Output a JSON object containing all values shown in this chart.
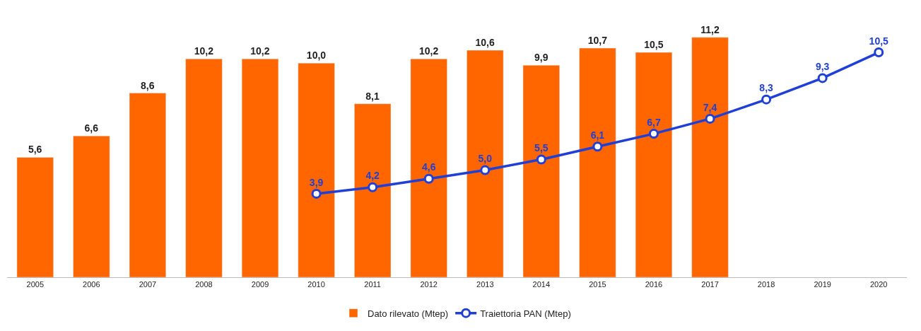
{
  "chart_data": {
    "type": "bar",
    "categories": [
      "2005",
      "2006",
      "2007",
      "2008",
      "2009",
      "2010",
      "2011",
      "2012",
      "2013",
      "2014",
      "2015",
      "2016",
      "2017",
      "2018",
      "2019",
      "2020"
    ],
    "series": [
      {
        "name": "Dato rilevato (Mtep)",
        "color": "#ff6600",
        "values": [
          5.6,
          6.6,
          8.6,
          10.2,
          10.2,
          10.0,
          8.1,
          10.2,
          10.6,
          9.9,
          10.7,
          10.5,
          11.2,
          null,
          null,
          null
        ],
        "value_labels": [
          "5,6",
          "6,6",
          "8,6",
          "10,2",
          "10,2",
          "10,0",
          "8,1",
          "10,2",
          "10,6",
          "9,9",
          "10,7",
          "10,5",
          "11,2",
          null,
          null,
          null
        ]
      },
      {
        "name": "Traiettoria PAN (Mtep)",
        "type": "line",
        "color": "#1f3fd6",
        "marker": "circle",
        "values": [
          null,
          null,
          null,
          null,
          null,
          3.9,
          4.2,
          4.6,
          5.0,
          5.5,
          6.1,
          6.7,
          7.4,
          8.3,
          9.3,
          10.5
        ],
        "value_labels": [
          null,
          null,
          null,
          null,
          null,
          "3,9",
          "4,2",
          "4,6",
          "5,0",
          "5,5",
          "6,1",
          "6,7",
          "7,4",
          "8,3",
          "9,3",
          "10,5"
        ]
      }
    ],
    "legend": "bottom"
  }
}
